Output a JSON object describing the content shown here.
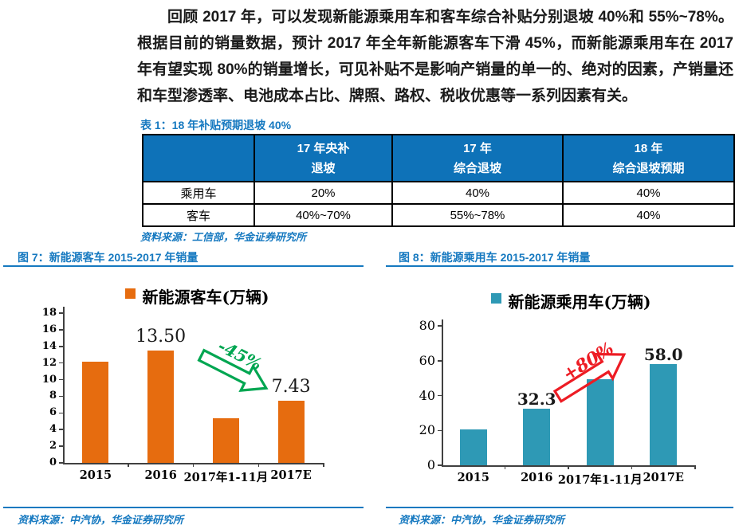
{
  "page": {
    "paragraph": "回顾 2017 年，可以发现新能源乘用车和客车综合补贴分别退坡 40%和 55%~78%。根据目前的销量数据，预计 2017 年全年新能源客车下滑 45%，而新能源乘用车在 2017 年有望实现 80%的销量增长，可见补贴不是影响产销量的单一的、绝对的因素，产销量还和车型渗透率、电池成本占比、牌照、路权、税收优惠等一系列因素有关。"
  },
  "table": {
    "title": "表 1：18 年补贴预期退坡 40%",
    "header": [
      {
        "line1": "",
        "line2": ""
      },
      {
        "line1": "17 年央补",
        "line2": "退坡"
      },
      {
        "line1": "17 年",
        "line2": "综合退坡"
      },
      {
        "line1": "18 年",
        "line2": "综合退坡预期"
      }
    ],
    "rows": [
      [
        "乘用车",
        "20%",
        "40%",
        "40%"
      ],
      [
        "客车",
        "40%~70%",
        "55%~78%",
        "40%"
      ]
    ],
    "source": "资料来源：工信部，华金证券研究所"
  },
  "figures": {
    "fig7": {
      "caption": "图 7：新能源客车 2015-2017 年销量",
      "source": "资料来源：中汽协，华金证券研究所"
    },
    "fig8": {
      "caption": "图 8：新能源乘用车 2015-2017 年销量",
      "source": "资料来源：中汽协，华金证券研究所"
    }
  },
  "chart_data": [
    {
      "type": "bar",
      "title": "新能源客车(万辆)",
      "categories": [
        "2015",
        "2016",
        "2017年1-11月",
        "2017E"
      ],
      "values": [
        12.2,
        13.5,
        5.4,
        7.43
      ],
      "data_labels": {
        "1": "13.50",
        "3": "7.43"
      },
      "xlabel": "",
      "ylabel": "",
      "ylim": [
        0,
        18
      ],
      "yticks": [
        0,
        2,
        4,
        6,
        8,
        10,
        12,
        14,
        16,
        18
      ],
      "grid": false,
      "legend_position": "top",
      "bar_color": "#E66C0F",
      "annotation": {
        "text": "-45%",
        "color": "#00A651",
        "direction": "down"
      }
    },
    {
      "type": "bar",
      "title": "新能源乘用车(万辆)",
      "categories": [
        "2015",
        "2016",
        "2017年1-11月",
        "2017E"
      ],
      "values": [
        20.5,
        32.3,
        49.5,
        58.0
      ],
      "data_labels": {
        "1": "32.3",
        "3": "58.0"
      },
      "xlabel": "",
      "ylabel": "",
      "ylim": [
        0,
        80
      ],
      "yticks": [
        0,
        20,
        40,
        60,
        80
      ],
      "grid": false,
      "legend_position": "top",
      "bar_color": "#2E99B5",
      "annotation": {
        "text": "+80%",
        "color": "#ED1C24",
        "direction": "up"
      }
    }
  ],
  "colors": {
    "accent_blue": "#1679C0",
    "table_header_bg": "#0E72B8",
    "axis": "#404040",
    "orange": "#E66C0F",
    "teal": "#2E99B5",
    "green": "#00A651",
    "red": "#ED1C24"
  }
}
